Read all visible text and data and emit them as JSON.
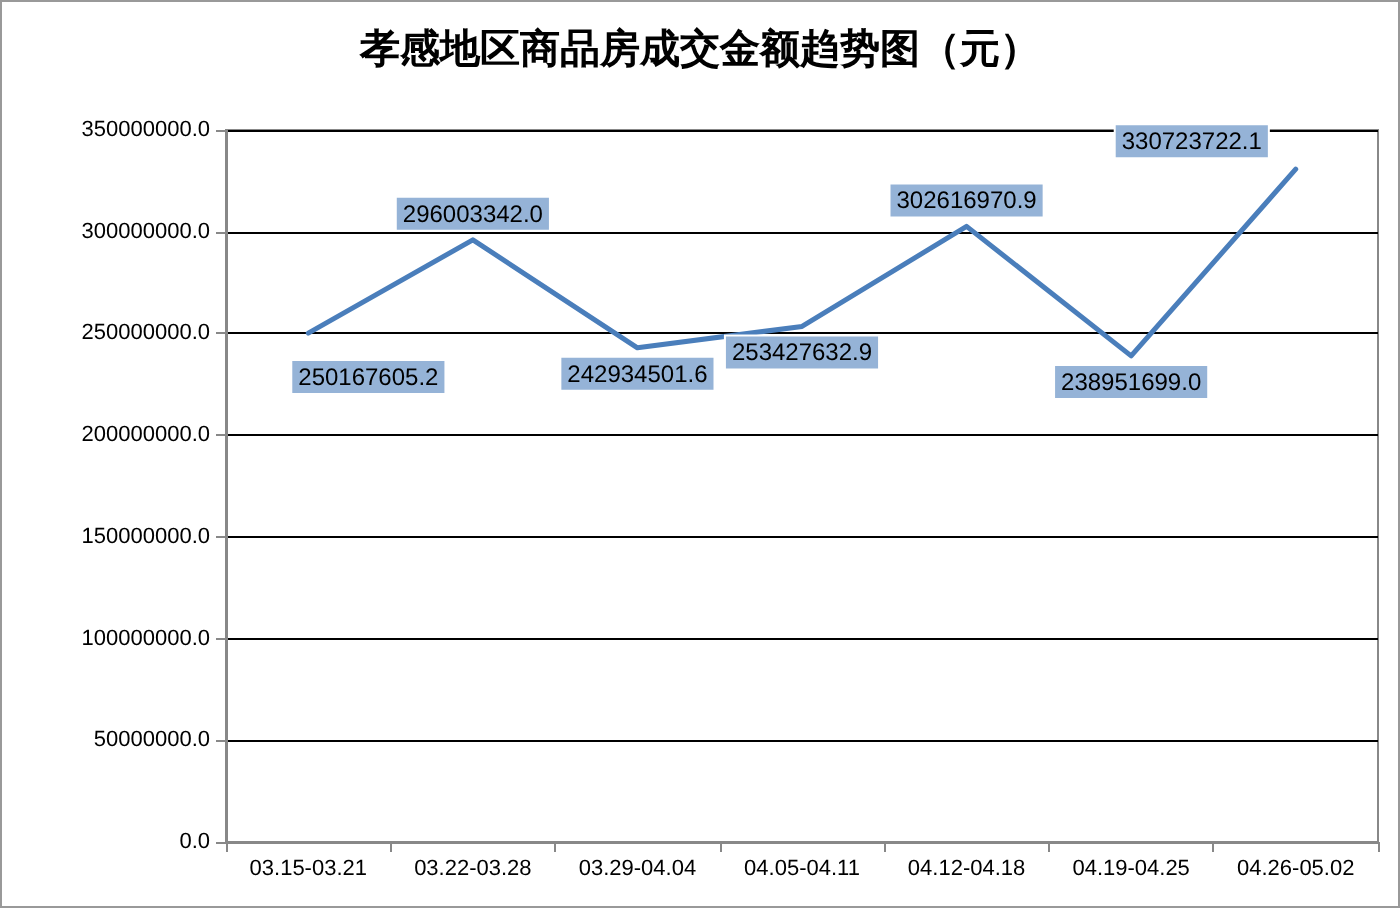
{
  "chart_data": {
    "type": "line",
    "title": "孝感地区商品房成交金额趋势图（元）",
    "categories": [
      "03.15-03.21",
      "03.22-03.28",
      "03.29-04.04",
      "04.05-04.11",
      "04.12-04.18",
      "04.19-04.25",
      "04.26-05.02"
    ],
    "series": [
      {
        "color": "#4a7ebb",
        "values": [
          250167605.2,
          296003342.0,
          242934501.6,
          253427632.9,
          302616970.9,
          238951699.0,
          330723722.1
        ],
        "value_labels": [
          "250167605.2",
          "296003342.0",
          "242934501.6",
          "253427632.9",
          "302616970.9",
          "238951699.0",
          "330723722.1"
        ]
      }
    ],
    "ylim": [
      0,
      350000000
    ],
    "yticks": [
      {
        "value": 0,
        "label": "0.0"
      },
      {
        "value": 50000000,
        "label": "50000000.0"
      },
      {
        "value": 100000000,
        "label": "100000000.0"
      },
      {
        "value": 150000000,
        "label": "150000000.0"
      },
      {
        "value": 200000000,
        "label": "200000000.0"
      },
      {
        "value": 250000000,
        "label": "250000000.0"
      },
      {
        "value": 300000000,
        "label": "300000000.0"
      },
      {
        "value": 350000000,
        "label": "350000000.0"
      }
    ],
    "grid": "y",
    "marker": "none",
    "line_style": "solid"
  }
}
